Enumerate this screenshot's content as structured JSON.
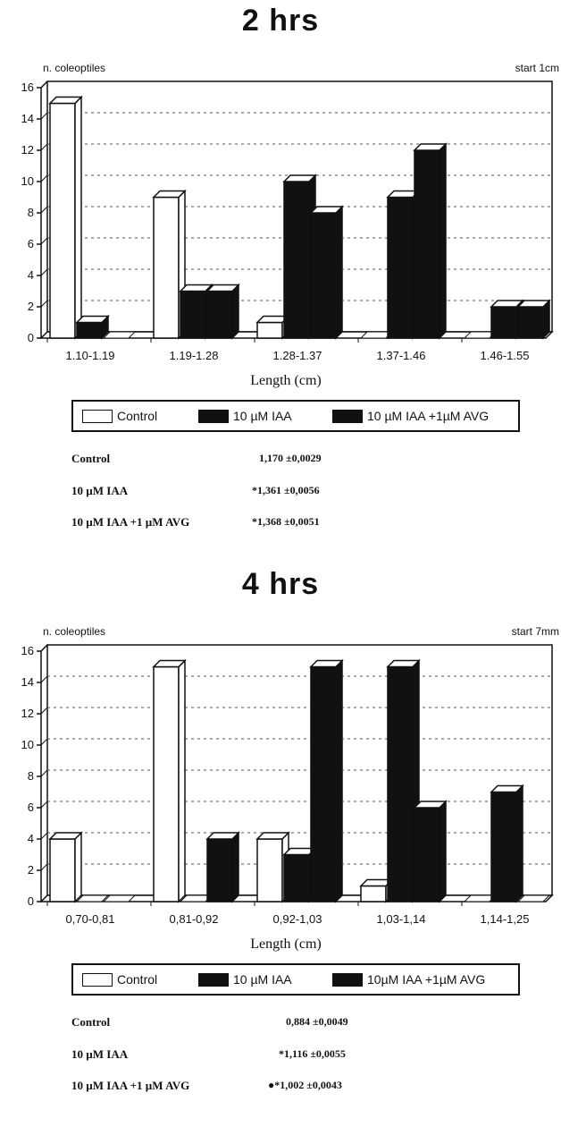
{
  "chart_data": [
    {
      "type": "bar",
      "title": "2 hrs",
      "ylabel": "n. coleoptiles",
      "xlabel": "Length (cm)",
      "annotation": "start 1cm",
      "ylim": [
        0,
        16
      ],
      "yticks": [
        "0",
        "2",
        "4",
        "6",
        "8",
        "10",
        "12",
        "14",
        "16"
      ],
      "grid": true,
      "categories": [
        "1.10-1.19",
        "1.19-1.28",
        "1.28-1.37",
        "1.37-1.46",
        "1.46-1.55"
      ],
      "series": [
        {
          "name": "Control",
          "color": "#ffffff",
          "values": [
            15,
            9,
            1,
            0,
            0
          ]
        },
        {
          "name": "10 µM IAA",
          "color": "#111111",
          "values": [
            1,
            3,
            10,
            9,
            2
          ]
        },
        {
          "name": "10 µM IAA +1µM AVG",
          "color": "#111111",
          "values": [
            0,
            3,
            8,
            12,
            2
          ]
        }
      ],
      "stats": [
        {
          "label": "Control",
          "value": "1,170 ±0,0029"
        },
        {
          "label": "10 µM IAA",
          "value": "*1,361 ±0,0056"
        },
        {
          "label": "10 µM IAA +1 µM AVG",
          "value": "*1,368 ±0,0051"
        }
      ]
    },
    {
      "type": "bar",
      "title": "4 hrs",
      "ylabel": "n. coleoptiles",
      "xlabel": "Length (cm)",
      "annotation": "start 7mm",
      "ylim": [
        0,
        16
      ],
      "yticks": [
        "0",
        "2",
        "4",
        "6",
        "8",
        "10",
        "12",
        "14",
        "16"
      ],
      "grid": true,
      "categories": [
        "0,70-0,81",
        "0,81-0,92",
        "0,92-1,03",
        "1,03-1,14",
        "1,14-1,25"
      ],
      "series": [
        {
          "name": "Control",
          "color": "#ffffff",
          "values": [
            4,
            15,
            4,
            1,
            0
          ]
        },
        {
          "name": "10 µM IAA",
          "color": "#111111",
          "values": [
            0,
            0,
            3,
            15,
            7
          ]
        },
        {
          "name": "10µM IAA +1µM AVG",
          "color": "#111111",
          "values": [
            0,
            4,
            15,
            6,
            0
          ]
        }
      ],
      "stats": [
        {
          "label": "Control",
          "value": "0,884 ±0,0049"
        },
        {
          "label": "10 µM IAA",
          "value": "*1,116 ±0,0055"
        },
        {
          "label": "10 µM IAA +1 µM AVG",
          "value": "●*1,002 ±0,0043"
        }
      ]
    }
  ]
}
